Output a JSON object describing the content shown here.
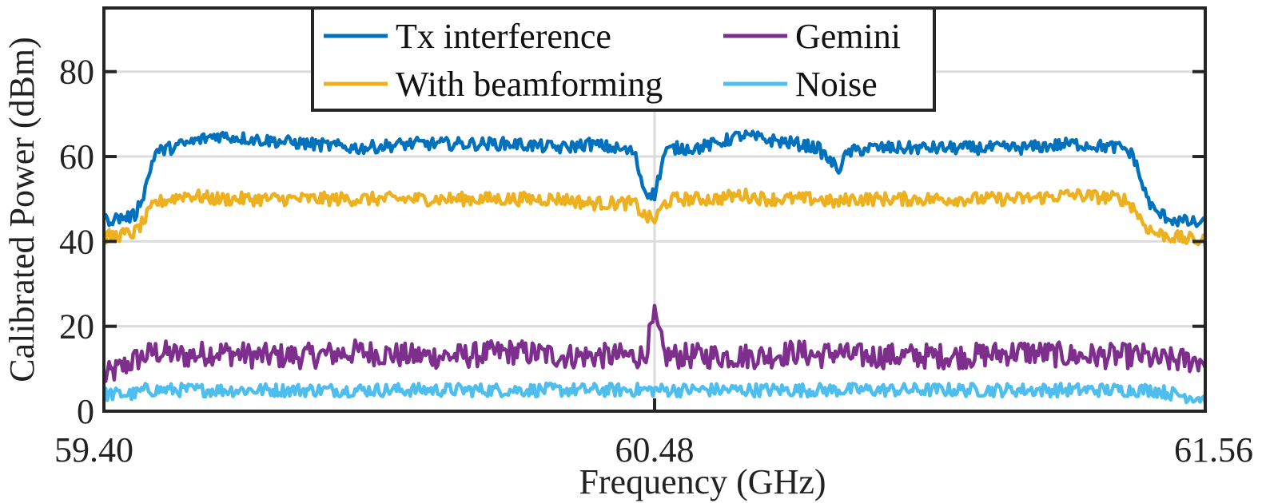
{
  "chart_data": {
    "type": "line",
    "title": "",
    "xlabel": "Frequency (GHz)",
    "ylabel": "Calibrated Power (dBm)",
    "xlim": [
      59.4,
      61.56
    ],
    "ylim": [
      0,
      95
    ],
    "x_ticks": [
      59.4,
      60.48,
      61.56
    ],
    "x_tick_labels": [
      "59.40",
      "60.48",
      "61.56"
    ],
    "y_ticks": [
      0,
      20,
      40,
      60,
      80
    ],
    "y_tick_labels": [
      "0",
      "20",
      "40",
      "60",
      "80"
    ],
    "grid": true,
    "legend_position": "top-center",
    "x": [
      59.4,
      59.46,
      59.48,
      59.5,
      59.56,
      59.62,
      59.7,
      59.8,
      59.9,
      60.0,
      60.1,
      60.2,
      60.3,
      60.35,
      60.4,
      60.44,
      60.46,
      60.48,
      60.5,
      60.52,
      60.56,
      60.6,
      60.65,
      60.7,
      60.76,
      60.8,
      60.84,
      60.86,
      60.9,
      61.0,
      61.1,
      61.2,
      61.3,
      61.4,
      61.42,
      61.44,
      61.46,
      61.5,
      61.56
    ],
    "series": [
      {
        "name": "Tx interference",
        "color": "#0072BD",
        "values": [
          45,
          46,
          52,
          61,
          63,
          65,
          64,
          63,
          62,
          63,
          63,
          63,
          62,
          63,
          62,
          61,
          52,
          51,
          61,
          62,
          62,
          63,
          65,
          64,
          63,
          62,
          57,
          61,
          62,
          62,
          62,
          62,
          63,
          62,
          60,
          52,
          47,
          45,
          44
        ]
      },
      {
        "name": "With beamforming",
        "color": "#EDB120",
        "values": [
          41,
          42,
          45,
          49,
          51,
          50,
          50,
          50,
          50,
          50,
          50,
          50,
          50,
          49,
          49,
          49,
          46,
          45,
          49,
          50,
          50,
          50,
          51,
          50,
          50,
          50,
          49,
          50,
          50,
          50,
          50,
          50,
          51,
          50,
          48,
          44,
          42,
          41,
          40
        ]
      },
      {
        "name": "Gemini",
        "color": "#7E2F8E",
        "values": [
          8,
          12,
          13,
          14,
          13,
          14,
          13,
          13,
          14,
          13,
          13,
          14,
          13,
          13,
          13,
          13,
          13,
          22,
          13,
          13,
          13,
          13,
          13,
          13,
          14,
          13,
          14,
          13,
          13,
          13,
          13,
          14,
          13,
          13,
          13,
          13,
          12,
          12,
          12
        ]
      },
      {
        "name": "Noise",
        "color": "#4DBEEE",
        "values": [
          4,
          4,
          5,
          5,
          5,
          5,
          5,
          5,
          5,
          5,
          5,
          5,
          5,
          5,
          5,
          5,
          5,
          5,
          5,
          5,
          5,
          5,
          5,
          5,
          5,
          5,
          5,
          5,
          5,
          5,
          5,
          5,
          5,
          5,
          5,
          5,
          5,
          4,
          3
        ]
      }
    ]
  }
}
